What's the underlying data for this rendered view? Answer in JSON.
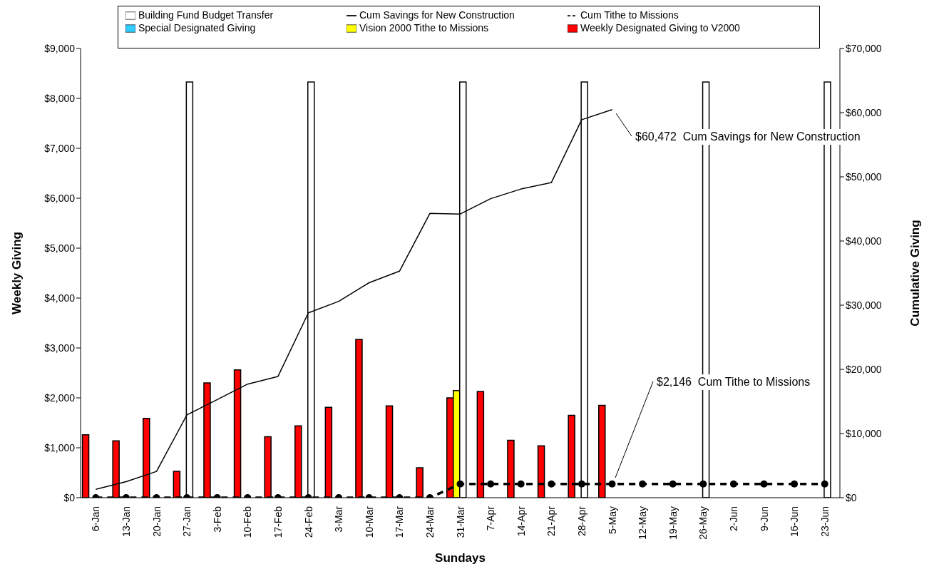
{
  "chart_data": {
    "type": "bar",
    "xlabel": "Sundays",
    "ylabel": "Weekly Giving",
    "y2label": "Cumulative Giving",
    "categories": [
      "6-Jan",
      "13-Jan",
      "20-Jan",
      "27-Jan",
      "3-Feb",
      "10-Feb",
      "17-Feb",
      "24-Feb",
      "3-Mar",
      "10-Mar",
      "17-Mar",
      "24-Mar",
      "31-Mar",
      "7-Apr",
      "14-Apr",
      "21-Apr",
      "28-Apr",
      "5-May",
      "12-May",
      "19-May",
      "26-May",
      "2-Jun",
      "9-Jun",
      "16-Jun",
      "23-Jun"
    ],
    "series": [
      {
        "name": "Weekly Designated Giving to V2000",
        "color": "#ff0000",
        "values": [
          1260,
          1140,
          1590,
          530,
          2300,
          2560,
          1220,
          1440,
          1810,
          3170,
          1840,
          600,
          2000,
          2130,
          1150,
          1040,
          1650,
          1850,
          null,
          null,
          null,
          null,
          null,
          null,
          null
        ]
      },
      {
        "name": "Vision 2000 Tithe to Missions",
        "color": "#ffff00",
        "values": [
          null,
          null,
          null,
          null,
          null,
          null,
          null,
          null,
          null,
          null,
          null,
          null,
          2146,
          null,
          null,
          null,
          null,
          null,
          null,
          null,
          null,
          null,
          null,
          null,
          null
        ]
      },
      {
        "name": "Building Fund Budget Transfer",
        "color": "#ffffff",
        "values": [
          null,
          null,
          null,
          8330,
          null,
          null,
          null,
          8330,
          null,
          null,
          null,
          null,
          8330,
          null,
          null,
          null,
          8330,
          null,
          null,
          null,
          8330,
          null,
          null,
          null,
          8330
        ]
      },
      {
        "name": "Special Designated Giving",
        "color": "#33ccff",
        "values": [
          null,
          null,
          null,
          null,
          null,
          null,
          null,
          null,
          null,
          null,
          null,
          null,
          null,
          null,
          null,
          null,
          null,
          null,
          null,
          null,
          null,
          null,
          null,
          null,
          null
        ]
      },
      {
        "name": "Cum Savings for New Construction",
        "type": "line",
        "axis": "y2",
        "color": "#000000",
        "line_style": "solid",
        "marker": "none",
        "values": [
          1300,
          2500,
          4100,
          12900,
          15300,
          17700,
          18900,
          28800,
          30600,
          33500,
          35300,
          44300,
          44200,
          46600,
          48100,
          49100,
          58900,
          60472,
          null,
          null,
          null,
          null,
          null,
          null,
          null
        ]
      },
      {
        "name": "Cum Tithe to Missions",
        "type": "line",
        "axis": "y2",
        "color": "#000000",
        "line_style": "dashed",
        "marker": "circle",
        "values": [
          0,
          0,
          0,
          0,
          0,
          0,
          0,
          0,
          0,
          0,
          0,
          0,
          2146,
          2146,
          2146,
          2146,
          2146,
          2146,
          2146,
          2146,
          2146,
          2146,
          2146,
          2146,
          2146
        ]
      }
    ],
    "ylim": [
      0,
      9000
    ],
    "yticks": [
      {
        "value": 0,
        "label": "$0"
      },
      {
        "value": 1000,
        "label": "$1,000"
      },
      {
        "value": 2000,
        "label": "$2,000"
      },
      {
        "value": 3000,
        "label": "$3,000"
      },
      {
        "value": 4000,
        "label": "$4,000"
      },
      {
        "value": 5000,
        "label": "$5,000"
      },
      {
        "value": 6000,
        "label": "$6,000"
      },
      {
        "value": 7000,
        "label": "$7,000"
      },
      {
        "value": 8000,
        "label": "$8,000"
      },
      {
        "value": 9000,
        "label": "$9,000"
      }
    ],
    "y2lim": [
      0,
      70000
    ],
    "y2ticks": [
      {
        "value": 0,
        "label": "$0"
      },
      {
        "value": 10000,
        "label": "$10,000"
      },
      {
        "value": 20000,
        "label": "$20,000"
      },
      {
        "value": 30000,
        "label": "$30,000"
      },
      {
        "value": 40000,
        "label": "$40,000"
      },
      {
        "value": 50000,
        "label": "$50,000"
      },
      {
        "value": 60000,
        "label": "$60,000"
      },
      {
        "value": 70000,
        "label": "$70,000"
      }
    ],
    "annotations": [
      "$60,472  Cum Savings for New Construction",
      "$2,146  Cum Tithe to Missions"
    ],
    "grid": false,
    "legend": "top"
  }
}
